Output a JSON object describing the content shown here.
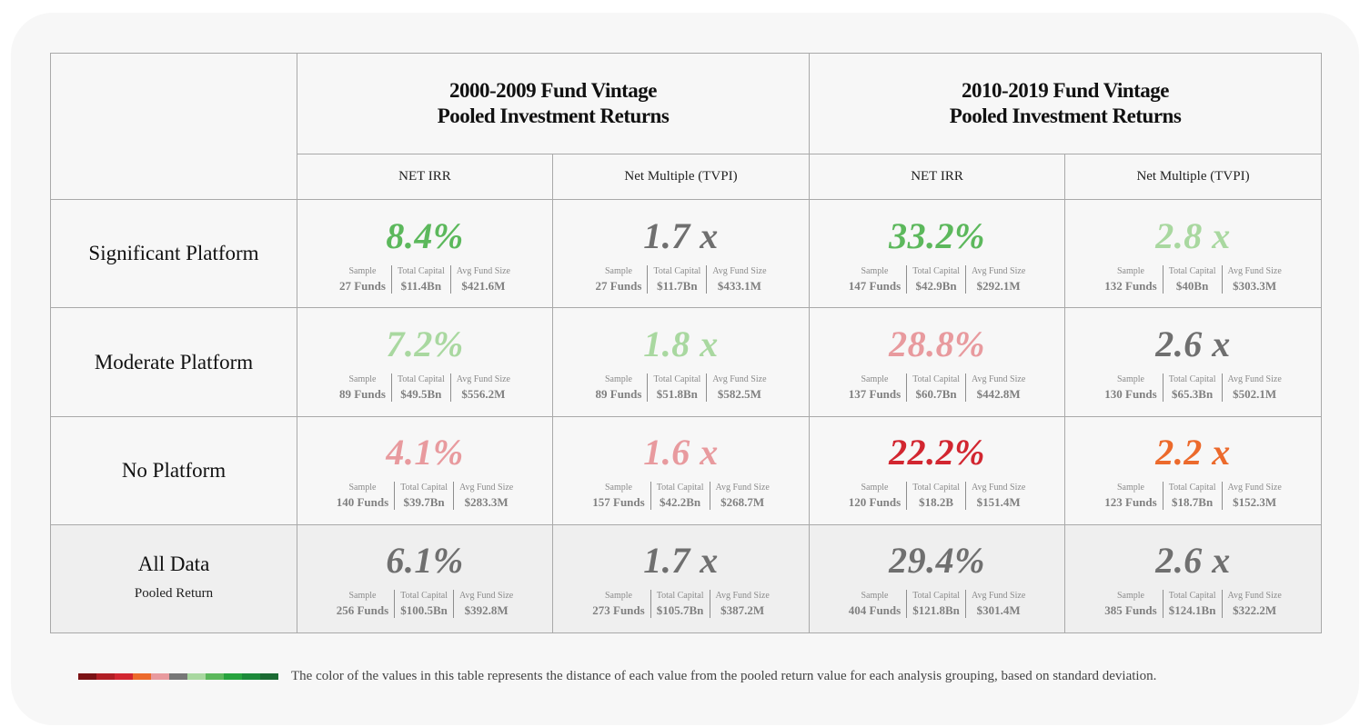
{
  "header": {
    "groups": [
      {
        "line1": "2000-2009 Fund Vintage",
        "line2": "Pooled Investment Returns"
      },
      {
        "line1": "2010-2019 Fund Vintage",
        "line2": "Pooled Investment Returns"
      }
    ],
    "metrics": [
      "NET IRR",
      "Net Multiple (TVPI)",
      "NET IRR",
      "Net Multiple (TVPI)"
    ]
  },
  "stat_labels": {
    "sample": "Sample",
    "capital": "Total Capital",
    "avg": "Avg Fund Size"
  },
  "rows": [
    {
      "label": "Significant Platform",
      "sub": "",
      "cells": [
        {
          "value": "8.4%",
          "color": "#5cb85c",
          "sample": "27 Funds",
          "capital": "$11.4Bn",
          "avg": "$421.6M"
        },
        {
          "value": "1.7 x",
          "color": "#6f6f6f",
          "sample": "27 Funds",
          "capital": "$11.7Bn",
          "avg": "$433.1M"
        },
        {
          "value": "33.2%",
          "color": "#5cb85c",
          "sample": "147 Funds",
          "capital": "$42.9Bn",
          "avg": "$292.1M"
        },
        {
          "value": "2.8 x",
          "color": "#a9d8a0",
          "sample": "132 Funds",
          "capital": "$40Bn",
          "avg": "$303.3M"
        }
      ]
    },
    {
      "label": "Moderate Platform",
      "sub": "",
      "cells": [
        {
          "value": "7.2%",
          "color": "#a9d8a0",
          "sample": "89 Funds",
          "capital": "$49.5Bn",
          "avg": "$556.2M"
        },
        {
          "value": "1.8 x",
          "color": "#a9d8a0",
          "sample": "89 Funds",
          "capital": "$51.8Bn",
          "avg": "$582.5M"
        },
        {
          "value": "28.8%",
          "color": "#e89a9e",
          "sample": "137 Funds",
          "capital": "$60.7Bn",
          "avg": "$442.8M"
        },
        {
          "value": "2.6 x",
          "color": "#6f6f6f",
          "sample": "130 Funds",
          "capital": "$65.3Bn",
          "avg": "$502.1M"
        }
      ]
    },
    {
      "label": "No Platform",
      "sub": "",
      "cells": [
        {
          "value": "4.1%",
          "color": "#e89a9e",
          "sample": "140 Funds",
          "capital": "$39.7Bn",
          "avg": "$283.3M"
        },
        {
          "value": "1.6 x",
          "color": "#e89a9e",
          "sample": "157 Funds",
          "capital": "$42.2Bn",
          "avg": "$268.7M"
        },
        {
          "value": "22.2%",
          "color": "#d22630",
          "sample": "120 Funds",
          "capital": "$18.2B",
          "avg": "$151.4M"
        },
        {
          "value": "2.2 x",
          "color": "#ec6a2c",
          "sample": "123 Funds",
          "capital": "$18.7Bn",
          "avg": "$152.3M"
        }
      ]
    },
    {
      "label": "All Data",
      "sub": "Pooled Return",
      "cells": [
        {
          "value": "6.1%",
          "color": "#6f6f6f",
          "sample": "256 Funds",
          "capital": "$100.5Bn",
          "avg": "$392.8M"
        },
        {
          "value": "1.7 x",
          "color": "#6f6f6f",
          "sample": "273 Funds",
          "capital": "$105.7Bn",
          "avg": "$387.2M"
        },
        {
          "value": "29.4%",
          "color": "#6f6f6f",
          "sample": "404 Funds",
          "capital": "$121.8Bn",
          "avg": "$301.4M"
        },
        {
          "value": "2.6 x",
          "color": "#6f6f6f",
          "sample": "385 Funds",
          "capital": "$124.1Bn",
          "avg": "$322.2M"
        }
      ]
    }
  ],
  "legend": {
    "colors": [
      "#7b1215",
      "#b01e24",
      "#d22630",
      "#ec6a2c",
      "#e89a9e",
      "#777777",
      "#a9d8a0",
      "#5cb85c",
      "#27a33e",
      "#1c8a3a",
      "#1b6b33"
    ],
    "note": "The color of the values in this table represents the distance of each value from the pooled return value for each analysis grouping, based on standard deviation."
  }
}
